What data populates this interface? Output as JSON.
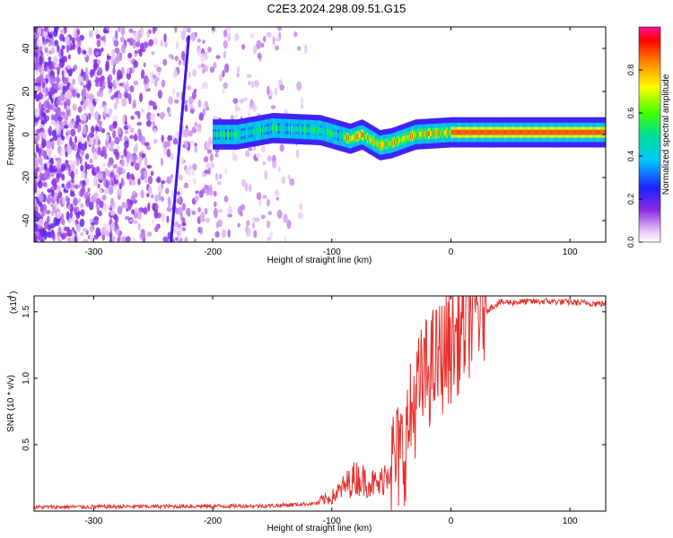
{
  "page_title": "C2E3.2024.298.09.51.G15",
  "chart_data": [
    {
      "type": "heatmap",
      "title": "C2E3.2024.298.09.51.G15",
      "xlabel": "Height of straight line (km)",
      "ylabel": "Frequency (Hz)",
      "xlim": [
        -350,
        130
      ],
      "ylim": [
        -50,
        50
      ],
      "x_ticks": [
        -300,
        -200,
        -100,
        0,
        100
      ],
      "y_ticks": [
        -40,
        -20,
        0,
        20,
        40
      ],
      "colorbar": {
        "label": "Normalized spectral amplitude",
        "range": [
          0.0,
          1.0
        ],
        "ticks": [
          0.0,
          0.2,
          0.4,
          0.6,
          0.8
        ]
      },
      "ridge": [
        {
          "x": -180,
          "y": 0
        },
        {
          "x": -150,
          "y": 3
        },
        {
          "x": -110,
          "y": 2
        },
        {
          "x": -85,
          "y": -2
        },
        {
          "x": -75,
          "y": 0
        },
        {
          "x": -60,
          "y": -5
        },
        {
          "x": -50,
          "y": -4
        },
        {
          "x": -30,
          "y": 0
        },
        {
          "x": 0,
          "y": 1
        },
        {
          "x": 50,
          "y": 1
        },
        {
          "x": 130,
          "y": 1
        }
      ],
      "diagonal_line": [
        {
          "x": -235,
          "y": -50
        },
        {
          "x": -220,
          "y": 46
        }
      ]
    },
    {
      "type": "line",
      "xlabel": "Height of straight line (km)",
      "ylabel": "SNR (10 * v/v)",
      "scale_label": "(x10",
      "scale_exp": "4",
      "xlim": [
        -350,
        130
      ],
      "ylim": [
        0,
        1.62
      ],
      "x_ticks": [
        -300,
        -200,
        -100,
        0,
        100
      ],
      "y_ticks": [
        0.5,
        1.0,
        1.5
      ],
      "color": "#e8302c",
      "profile": [
        {
          "x": -350,
          "y": 0.03
        },
        {
          "x": -150,
          "y": 0.04
        },
        {
          "x": -110,
          "y": 0.06
        },
        {
          "x": -100,
          "y": 0.08
        },
        {
          "x": -80,
          "y": 0.2
        },
        {
          "x": -60,
          "y": 0.15
        },
        {
          "x": -50,
          "y": 0.3
        },
        {
          "x": -40,
          "y": 0.4
        },
        {
          "x": -30,
          "y": 0.8
        },
        {
          "x": -20,
          "y": 1.0
        },
        {
          "x": 0,
          "y": 1.2
        },
        {
          "x": 20,
          "y": 1.45
        },
        {
          "x": 40,
          "y": 1.57
        },
        {
          "x": 80,
          "y": 1.58
        },
        {
          "x": 130,
          "y": 1.56
        }
      ]
    }
  ]
}
